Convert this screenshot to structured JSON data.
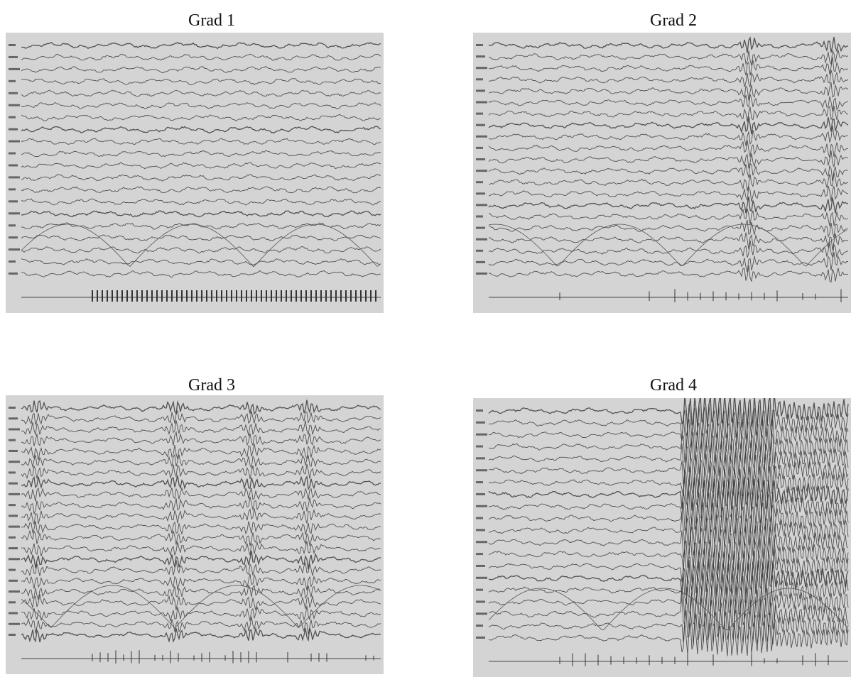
{
  "figure": {
    "panels": [
      {
        "title": "Grad 1",
        "channels": 20,
        "burst": "none"
      },
      {
        "title": "Grad 2",
        "channels": 21,
        "burst": "intermittent"
      },
      {
        "title": "Grad 3",
        "channels": 22,
        "burst": "frequent"
      },
      {
        "title": "Grad 4",
        "channels": 20,
        "burst": "continuous"
      }
    ],
    "colors": {
      "background": "#ffffff",
      "panel": "#d4d4d4",
      "trace": "#3a3a3a"
    }
  }
}
